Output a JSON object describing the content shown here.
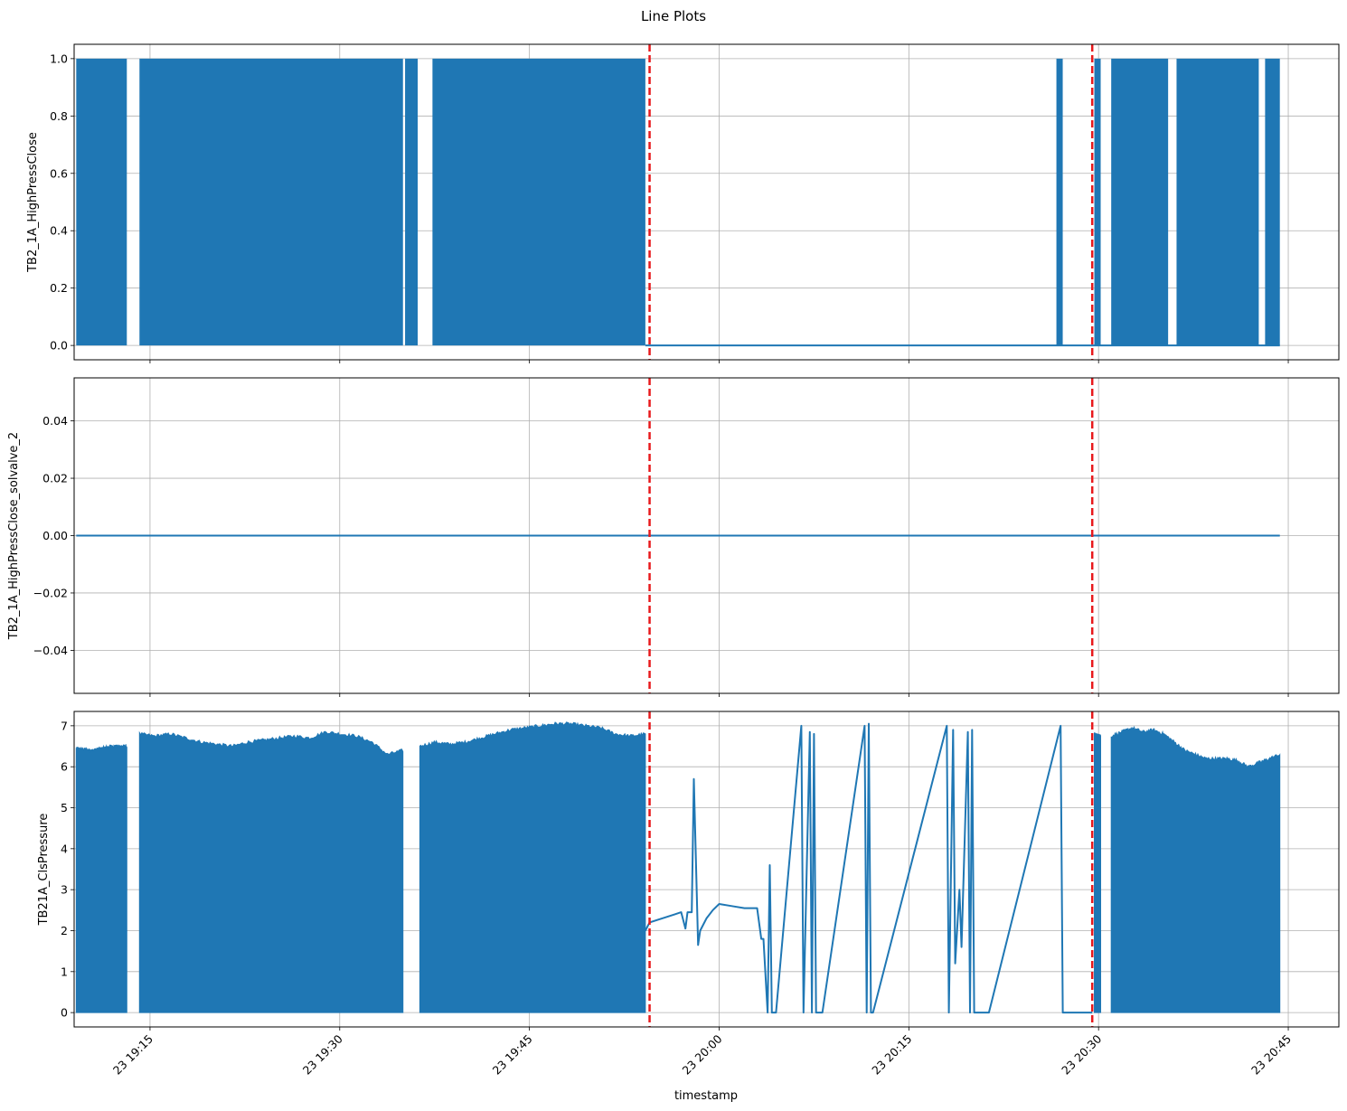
{
  "chart_data": {
    "title": "Line Plots",
    "type": "line",
    "xlabel": "timestamp",
    "x_ticks": [
      "23 19:15",
      "23 19:30",
      "23 19:45",
      "23 20:00",
      "23 20:15",
      "23 20:30",
      "23 20:45"
    ],
    "x_range": [
      "23 19:09",
      "23 20:49"
    ],
    "grid": true,
    "line_color": "#1f77b4",
    "vline_color": "#e8191c",
    "vertical_lines": [
      "23 19:54:30",
      "23 20:29:30"
    ],
    "panels": [
      {
        "ylabel": "TB2_1A_HighPressClose",
        "ylim": [
          -0.05,
          1.05
        ],
        "y_ticks": [
          "0.0",
          "0.2",
          "0.4",
          "0.6",
          "0.8",
          "1.0"
        ],
        "series": [
          {
            "description": "binary 0/1 signal, rapidly toggling within dense regions, 0 elsewhere",
            "values": [
              0,
              1
            ],
            "dense_toggle_ranges": [
              [
                "23 19:09:10",
                "23 19:13:10"
              ],
              [
                "23 19:14:10",
                "23 19:35:00"
              ],
              [
                "23 19:35:10",
                "23 19:36:10"
              ],
              [
                "23 19:37:20",
                "23 19:54:10"
              ],
              [
                "23 20:26:40",
                "23 20:27:10"
              ],
              [
                "23 20:29:40",
                "23 20:30:10"
              ],
              [
                "23 20:31:00",
                "23 20:35:30"
              ],
              [
                "23 20:36:10",
                "23 20:42:40"
              ],
              [
                "23 20:43:10",
                "23 20:44:20"
              ]
            ],
            "zero_from": "23 19:54:10",
            "end": "23 20:44:20"
          }
        ]
      },
      {
        "ylabel": "TB2_1A_HighPressClose_solvalve_2",
        "ylim": [
          -0.055,
          0.055
        ],
        "y_ticks": [
          "−0.04",
          "−0.02",
          "0.00",
          "0.02",
          "0.04"
        ],
        "series": [
          {
            "description": "constant zero",
            "x": [
              "23 19:09:10",
              "23 20:44:20"
            ],
            "y": [
              0,
              0
            ]
          }
        ]
      },
      {
        "ylabel": "TB21A_ClsPressure",
        "ylim": [
          -0.35,
          7.35
        ],
        "y_ticks": [
          "0",
          "1",
          "2",
          "3",
          "4",
          "5",
          "6",
          "7"
        ],
        "series": [
          {
            "description": "pressure, rapidly toggling between 0 and an upper envelope in dense regions",
            "dense_ranges": [
              {
                "range": [
                  "23 19:09:10",
                  "23 19:13:10"
                ],
                "top": [
                  6.45,
                  6.4,
                  6.5,
                  6.5
                ]
              },
              {
                "range": [
                  "23 19:14:10",
                  "23 19:35:00"
                ],
                "top": [
                  6.8,
                  6.75,
                  6.8,
                  6.7,
                  6.6,
                  6.55,
                  6.5,
                  6.6,
                  6.65,
                  6.7,
                  6.75,
                  6.7,
                  6.85,
                  6.8,
                  6.75,
                  6.6,
                  6.3,
                  6.4
                ]
              },
              {
                "range": [
                  "23 19:36:20",
                  "23 19:54:10"
                ],
                "top": [
                  6.5,
                  6.6,
                  6.55,
                  6.6,
                  6.7,
                  6.8,
                  6.9,
                  6.95,
                  7.0,
                  7.05,
                  7.05,
                  7.0,
                  6.95,
                  6.8,
                  6.75,
                  6.8
                ]
              },
              {
                "range": [
                  "23 20:29:40",
                  "23 20:30:10"
                ],
                "top": [
                  6.8,
                  6.75
                ]
              },
              {
                "range": [
                  "23 20:31:00",
                  "23 20:44:20"
                ],
                "top": [
                  6.75,
                  6.85,
                  6.95,
                  6.85,
                  6.9,
                  6.8,
                  6.6,
                  6.4,
                  6.3,
                  6.2,
                  6.2,
                  6.2,
                  6.15,
                  6.0,
                  6.1,
                  6.2,
                  6.3
                ]
              }
            ],
            "sparse_trace": {
              "x": [
                "23 19:54:10",
                "23 19:54:30",
                "23 19:55:30",
                "23 19:56:30",
                "23 19:57:00",
                "23 19:57:20",
                "23 19:57:30",
                "23 19:57:50",
                "23 19:58:00",
                "23 19:58:20",
                "23 19:58:30",
                "23 19:59:00",
                "23 19:59:30",
                "23 20:00:00",
                "23 20:01:00",
                "23 20:02:00",
                "23 20:03:00",
                "23 20:03:20",
                "23 20:03:30",
                "23 20:03:50",
                "23 20:04:00",
                "23 20:04:10",
                "23 20:04:20",
                "23 20:04:30",
                "23 20:06:30",
                "23 20:06:40",
                "23 20:07:10",
                "23 20:07:20",
                "23 20:07:30",
                "23 20:07:40",
                "23 20:08:00",
                "23 20:08:10",
                "23 20:11:30",
                "23 20:11:40",
                "23 20:11:50",
                "23 20:12:00",
                "23 20:12:10",
                "23 20:18:00",
                "23 20:18:10",
                "23 20:18:30",
                "23 20:18:40",
                "23 20:19:00",
                "23 20:19:10",
                "23 20:19:40",
                "23 20:19:50",
                "23 20:20:00",
                "23 20:20:10",
                "23 20:21:00",
                "23 20:21:10",
                "23 20:21:20",
                "23 20:27:00",
                "23 20:27:10",
                "23 20:27:30",
                "23 20:29:30"
              ],
              "y": [
                2.0,
                2.2,
                2.3,
                2.4,
                2.45,
                2.05,
                2.45,
                2.45,
                5.7,
                1.65,
                2.0,
                2.3,
                2.5,
                2.65,
                2.6,
                2.55,
                2.55,
                1.8,
                1.8,
                0,
                3.6,
                0,
                0,
                0,
                7.0,
                0,
                6.85,
                0,
                6.8,
                0,
                0,
                0,
                7.0,
                0,
                7.05,
                0,
                0,
                7.0,
                0,
                6.9,
                1.2,
                3.0,
                1.6,
                6.85,
                0,
                6.9,
                0,
                0,
                0,
                0,
                7.0,
                0,
                0,
                0
              ]
            }
          }
        ]
      }
    ]
  }
}
